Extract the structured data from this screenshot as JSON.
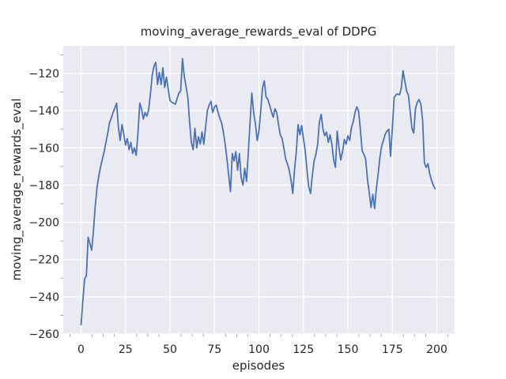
{
  "figure": {
    "background": "#ffffff",
    "text_color": "#262626"
  },
  "chart_data": {
    "type": "line",
    "title": "moving_average_rewards_eval of DDPG",
    "xlabel": "episodes",
    "ylabel": "moving_average_rewards_eval",
    "grid": true,
    "legend_visible": false,
    "plot_background": "#eaeaf2",
    "grid_color": "#ffffff",
    "tick_label_color": "#262626",
    "minor_tick_color": "#999999",
    "x_ticks": [
      0,
      25,
      50,
      75,
      100,
      125,
      150,
      175,
      200
    ],
    "y_ticks": [
      -120,
      -140,
      -160,
      -180,
      -200,
      -220,
      -240,
      -260
    ],
    "x_minor_step": 6.25,
    "y_minor_step": 10,
    "xlim": [
      -10,
      210
    ],
    "ylim": [
      -260,
      -105.15
    ],
    "series": [
      {
        "name": "moving_average_rewards_eval",
        "color": "#4c72b0",
        "line_width": 1.8,
        "x_start": 0,
        "x_step": 1,
        "y": [
          -255,
          -242,
          -230.5,
          -228.5,
          -208,
          -211.5,
          -215,
          -204,
          -191,
          -181,
          -175,
          -170,
          -166,
          -162,
          -157,
          -152,
          -146.5,
          -144,
          -141,
          -138.5,
          -136,
          -149,
          -156,
          -147.5,
          -152.5,
          -158.5,
          -155,
          -161,
          -157,
          -163,
          -160,
          -164,
          -152,
          -136,
          -139,
          -144.5,
          -141,
          -143,
          -139.5,
          -131,
          -121,
          -116,
          -114,
          -126,
          -119.5,
          -126,
          -117,
          -127.5,
          -122,
          -128.5,
          -134.5,
          -135.5,
          -136,
          -136.5,
          -133.5,
          -130.5,
          -129.5,
          -112,
          -121.5,
          -127,
          -132.5,
          -146,
          -157,
          -161,
          -149.5,
          -160,
          -154,
          -158,
          -151.5,
          -158,
          -149,
          -140,
          -137,
          -135,
          -141,
          -138,
          -137,
          -141,
          -144,
          -146.5,
          -151.5,
          -158,
          -165.5,
          -175,
          -183.5,
          -163,
          -167,
          -162,
          -172,
          -163,
          -176,
          -180,
          -171,
          -178,
          -163,
          -146,
          -130.5,
          -141,
          -147,
          -156,
          -151,
          -140,
          -128,
          -124,
          -132.5,
          -134,
          -137,
          -140.5,
          -143.5,
          -139,
          -141,
          -147.5,
          -153,
          -155,
          -160,
          -166,
          -168.5,
          -172,
          -177,
          -184.5,
          -172,
          -162,
          -147.5,
          -153,
          -148,
          -155,
          -161.5,
          -172,
          -181,
          -184.5,
          -175,
          -167,
          -163.5,
          -158,
          -146,
          -142,
          -150,
          -153.5,
          -151.5,
          -157,
          -153,
          -158,
          -166.5,
          -170.5,
          -151,
          -160,
          -166.5,
          -162,
          -155.5,
          -158,
          -153.5,
          -156,
          -149,
          -146,
          -141,
          -138,
          -140,
          -150,
          -161.5,
          -163.5,
          -166,
          -177,
          -184,
          -192,
          -185,
          -192.5,
          -182,
          -174,
          -165,
          -159,
          -156,
          -152.5,
          -151,
          -150,
          -164.5,
          -149,
          -133,
          -131.5,
          -131,
          -131.5,
          -128,
          -118.5,
          -124,
          -129.5,
          -131.5,
          -140.5,
          -149.5,
          -152,
          -139,
          -135.5,
          -134,
          -136.5,
          -145,
          -168,
          -170.5,
          -168.5,
          -174,
          -177.5,
          -180,
          -182
        ]
      }
    ]
  }
}
